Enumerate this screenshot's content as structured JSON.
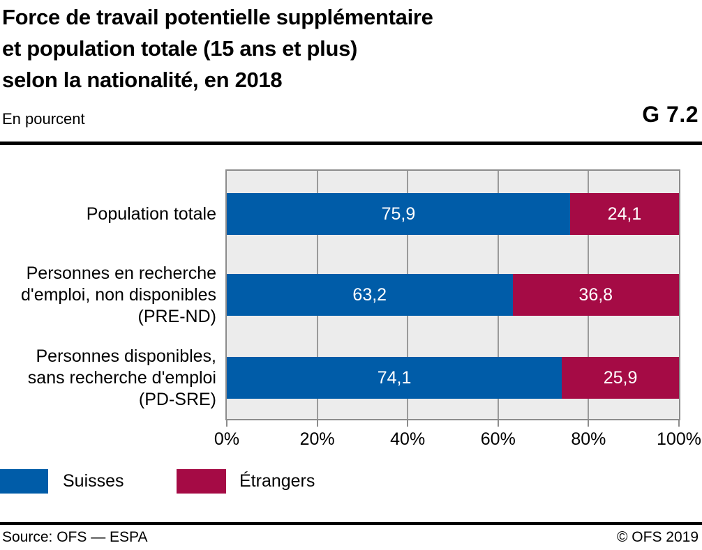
{
  "header": {
    "title_lines": [
      "Force de travail potentielle supplémentaire",
      "et population totale (15 ans et plus)",
      "selon la nationalité, en 2018"
    ],
    "subtitle": "En pourcent",
    "figure_id": "G 7.2"
  },
  "chart_data": {
    "type": "bar",
    "orientation": "horizontal",
    "stacked": true,
    "unit": "percent",
    "categories": [
      {
        "lines": [
          "Population totale"
        ]
      },
      {
        "lines": [
          "Personnes en recherche",
          "d'emploi, non disponibles",
          "(PRE-ND)"
        ]
      },
      {
        "lines": [
          "Personnes disponibles,",
          "sans recherche d'emploi",
          "(PD-SRE)"
        ]
      }
    ],
    "series": [
      {
        "name": "Suisses",
        "color": "#005CA8",
        "values": [
          75.9,
          63.2,
          74.1
        ],
        "value_labels": [
          "75,9",
          "63,2",
          "74,1"
        ]
      },
      {
        "name": "Étrangers",
        "color": "#A50B45",
        "values": [
          24.1,
          36.8,
          25.9
        ],
        "value_labels": [
          "24,1",
          "36,8",
          "25,9"
        ]
      }
    ],
    "xlim": [
      0,
      100
    ],
    "x_tick_values": [
      0,
      20,
      40,
      60,
      80,
      100
    ],
    "x_tick_labels": [
      "0%",
      "20%",
      "40%",
      "60%",
      "80%",
      "100%"
    ],
    "grid": true,
    "plot_background": "#ECECEC",
    "gridline_color": "#9A9A9A",
    "legend_position": "bottom-left"
  },
  "legend": {
    "items": [
      {
        "label": "Suisses",
        "color": "#005CA8"
      },
      {
        "label": "Étrangers",
        "color": "#A50B45"
      }
    ]
  },
  "footer": {
    "source": "Source: OFS — ESPA",
    "copyright": "© OFS 2019"
  }
}
